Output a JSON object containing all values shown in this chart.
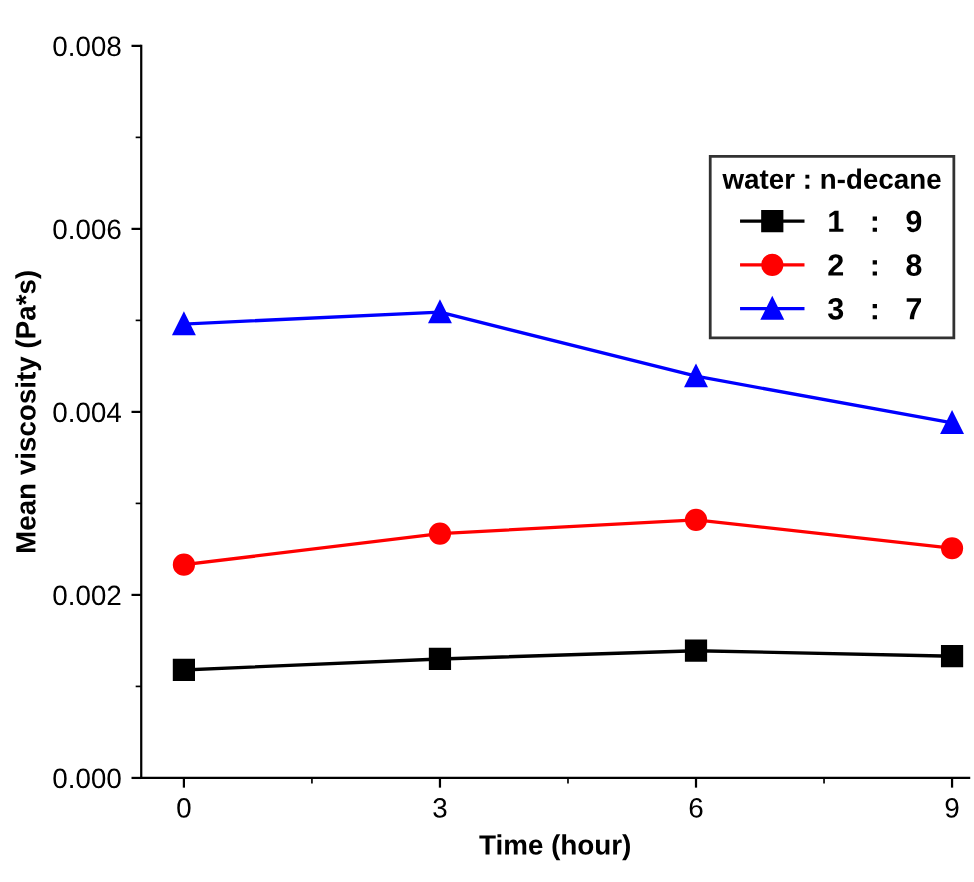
{
  "chart_data": {
    "type": "line",
    "xlabel": "Time (hour)",
    "ylabel": "Mean viscosity (Pa*s)",
    "legend_title": "water : n-decane",
    "x": [
      0,
      3,
      6,
      9
    ],
    "series": [
      {
        "name": "1   :   9",
        "color": "#000000",
        "marker": "square",
        "values": [
          0.00118,
          0.0013,
          0.00139,
          0.00133
        ]
      },
      {
        "name": "2   :   8",
        "color": "#ff0000",
        "marker": "circle",
        "values": [
          0.00233,
          0.00267,
          0.00282,
          0.00251
        ]
      },
      {
        "name": "3   :   7",
        "color": "#0000ff",
        "marker": "triangle",
        "values": [
          0.00496,
          0.00509,
          0.00439,
          0.00388
        ]
      }
    ],
    "xlim": [
      -0.5,
      9.2
    ],
    "xticks": [
      0,
      3,
      6,
      9
    ],
    "ylim": [
      0,
      0.008
    ],
    "yticks": [
      {
        "value": 0,
        "label": "0.000"
      },
      {
        "value": 0.002,
        "label": "0.002"
      },
      {
        "value": 0.004,
        "label": "0.004"
      },
      {
        "value": 0.006,
        "label": "0.006"
      },
      {
        "value": 0.008,
        "label": "0.008"
      }
    ],
    "grid": false,
    "legend": "top right",
    "line_style": "solid"
  }
}
